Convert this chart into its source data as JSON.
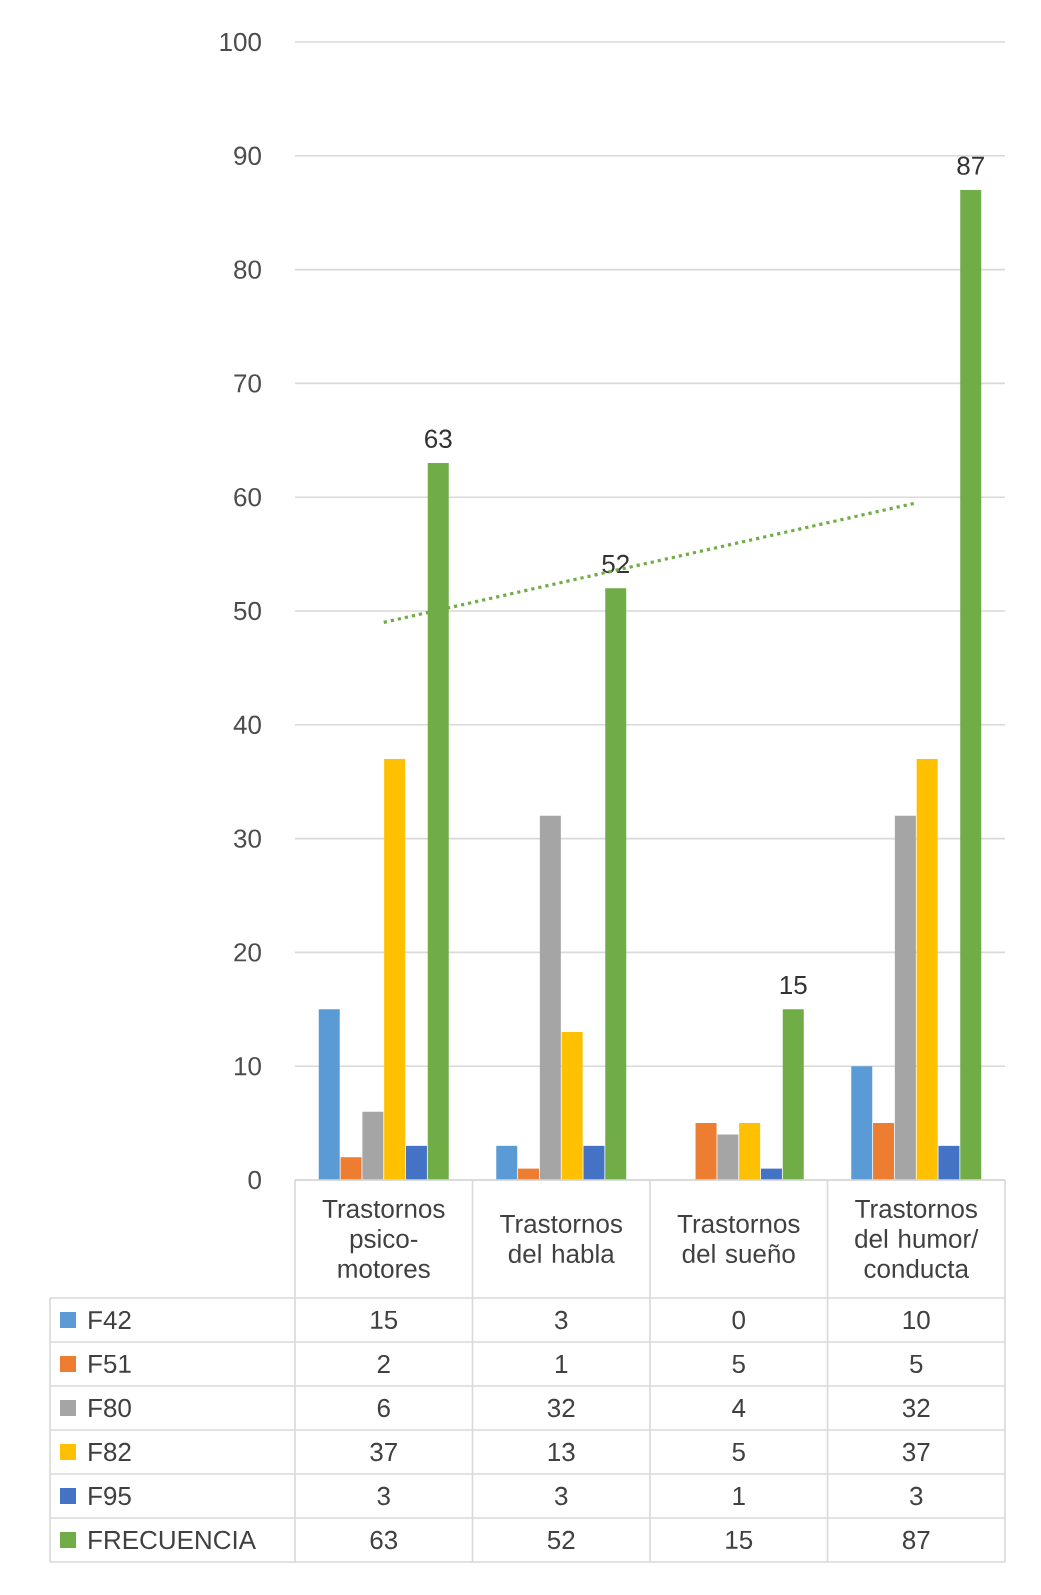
{
  "chart_data": {
    "type": "bar",
    "categories": [
      "Trastornos psico-motores",
      "Trastornos del habla",
      "Trastornos del sueño",
      "Trastornos del humor/ conducta"
    ],
    "series": [
      {
        "name": "F42",
        "color": "#5b9bd5",
        "values": [
          15,
          3,
          0,
          10
        ]
      },
      {
        "name": "F51",
        "color": "#ed7d31",
        "values": [
          2,
          1,
          5,
          5
        ]
      },
      {
        "name": "F80",
        "color": "#a5a5a5",
        "values": [
          6,
          32,
          4,
          32
        ]
      },
      {
        "name": "F82",
        "color": "#ffc000",
        "values": [
          37,
          13,
          5,
          37
        ]
      },
      {
        "name": "F95",
        "color": "#4472c4",
        "values": [
          3,
          3,
          1,
          3
        ]
      },
      {
        "name": "FRECUENCIA",
        "color": "#70ad47",
        "values": [
          63,
          52,
          15,
          87
        ],
        "value_labels": [
          "63",
          "52",
          "15",
          "87"
        ]
      },
      {
        "type": "line",
        "color": "#70ad47",
        "line_style": "dotted",
        "values": [
          49,
          52.5,
          56,
          59.5
        ],
        "value_labels": [
          null,
          null,
          null,
          null
        ]
      }
    ],
    "ylim": [
      0,
      100
    ],
    "yticks": [
      0,
      10,
      20,
      30,
      40,
      50,
      60,
      70,
      80,
      90,
      100
    ],
    "grid": "y",
    "legend": "bottom",
    "data_labels": true
  }
}
